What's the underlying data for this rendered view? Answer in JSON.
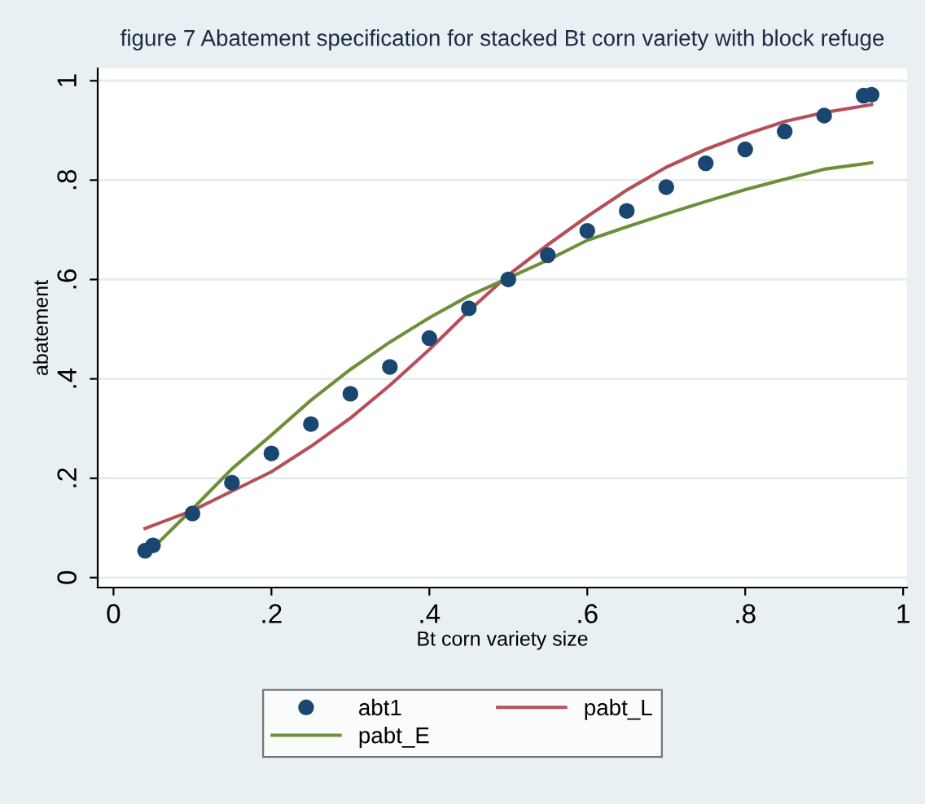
{
  "chart_data": {
    "type": "scatter",
    "title": "figure 7 Abatement specification for stacked Bt corn variety with block refuge",
    "xlabel": "Bt corn variety size",
    "ylabel": "abatement",
    "xlim": [
      -0.02,
      1.005
    ],
    "ylim": [
      -0.02,
      1.025
    ],
    "xticks": [
      {
        "value": 0,
        "label": "0"
      },
      {
        "value": 0.2,
        "label": ".2"
      },
      {
        "value": 0.4,
        "label": ".4"
      },
      {
        "value": 0.6,
        "label": ".6"
      },
      {
        "value": 0.8,
        "label": ".8"
      },
      {
        "value": 1,
        "label": "1"
      }
    ],
    "yticks": [
      {
        "value": 0,
        "label": "0"
      },
      {
        "value": 0.2,
        "label": ".2"
      },
      {
        "value": 0.4,
        "label": ".4"
      },
      {
        "value": 0.6,
        "label": ".6"
      },
      {
        "value": 0.8,
        "label": ".8"
      },
      {
        "value": 1,
        "label": "1"
      }
    ],
    "grid": "y",
    "legend": "bottom",
    "series": [
      {
        "name": "abt1",
        "marker": "circle",
        "color": "#1a476f",
        "x": [
          0.04,
          0.05,
          0.1,
          0.15,
          0.2,
          0.25,
          0.3,
          0.35,
          0.4,
          0.45,
          0.5,
          0.55,
          0.6,
          0.65,
          0.7,
          0.75,
          0.8,
          0.85,
          0.9,
          0.95,
          0.96
        ],
        "values": [
          0.054,
          0.065,
          0.129,
          0.191,
          0.25,
          0.309,
          0.37,
          0.424,
          0.482,
          0.542,
          0.6,
          0.649,
          0.698,
          0.738,
          0.786,
          0.834,
          0.862,
          0.898,
          0.93,
          0.97,
          0.972
        ]
      },
      {
        "name": "pabt_L",
        "type": "line",
        "marker": "none",
        "color": "#b5505a",
        "x": [
          0.04,
          0.1,
          0.2,
          0.25,
          0.3,
          0.35,
          0.4,
          0.45,
          0.5,
          0.55,
          0.6,
          0.65,
          0.7,
          0.75,
          0.8,
          0.85,
          0.9,
          0.96
        ],
        "values": [
          0.099,
          0.135,
          0.213,
          0.264,
          0.321,
          0.387,
          0.459,
          0.537,
          0.609,
          0.67,
          0.727,
          0.78,
          0.826,
          0.862,
          0.892,
          0.918,
          0.936,
          0.952
        ]
      },
      {
        "name": "pabt_E",
        "type": "line",
        "marker": "none",
        "color": "#6e8f3a",
        "x": [
          0.04,
          0.1,
          0.15,
          0.2,
          0.25,
          0.3,
          0.35,
          0.4,
          0.45,
          0.5,
          0.55,
          0.6,
          0.65,
          0.7,
          0.75,
          0.8,
          0.85,
          0.9,
          0.96
        ],
        "values": [
          0.044,
          0.138,
          0.219,
          0.287,
          0.357,
          0.419,
          0.474,
          0.523,
          0.567,
          0.603,
          0.639,
          0.679,
          0.706,
          0.732,
          0.757,
          0.781,
          0.802,
          0.822,
          0.835
        ]
      }
    ]
  }
}
